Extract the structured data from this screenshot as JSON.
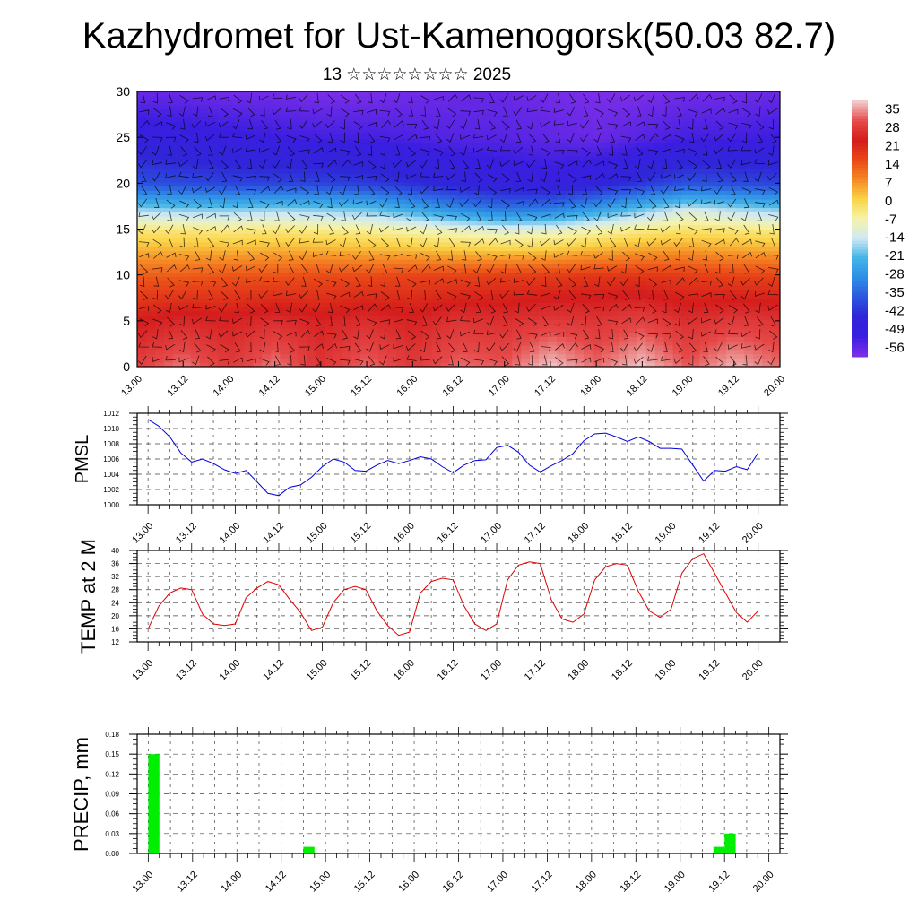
{
  "header": {
    "title": "Kazhydromet for Ust-Kamenogorsk(50.03 82.7)",
    "subtitle": "13 ☆☆☆☆☆☆☆☆ 2025"
  },
  "x_tick_labels": [
    "13.00",
    "13.12",
    "14.00",
    "14.12",
    "15.00",
    "15.12",
    "16.00",
    "16.12",
    "17.00",
    "17.12",
    "18.00",
    "18.12",
    "19.00",
    "19.12",
    "20.00"
  ],
  "colorbar": {
    "labels": [
      "35",
      "28",
      "21",
      "14",
      "7",
      "0",
      "-7",
      "-14",
      "-21",
      "-28",
      "-35",
      "-42",
      "-49",
      "-56"
    ],
    "colors": [
      "#f2c8c8",
      "#e54848",
      "#d41c1c",
      "#ea4a18",
      "#f58a24",
      "#fbd448",
      "#f5f3a8",
      "#cfe9f3",
      "#45b4e8",
      "#2f8ee6",
      "#2c58df",
      "#2f26d8",
      "#3a1ee0",
      "#7b2ee8"
    ]
  },
  "chart_data": [
    {
      "type": "heatmap",
      "title": "",
      "ylabel": "",
      "ylim": [
        0,
        30
      ],
      "yticks": [
        0,
        5,
        10,
        15,
        20,
        25,
        30
      ],
      "x_hours": [
        0,
        168
      ],
      "field": "temperature by level with wind barbs overlay",
      "color_scale": [
        -56,
        35
      ],
      "value_rows": [
        {
          "y": 30,
          "values": [
            -54,
            -54,
            -55,
            -55,
            -56,
            -56,
            -55,
            -54,
            -54,
            -55,
            -56,
            -56,
            -55,
            -55,
            -54
          ]
        },
        {
          "y": 25,
          "values": [
            -46,
            -47,
            -48,
            -49,
            -50,
            -50,
            -51,
            -52,
            -52,
            -53,
            -54,
            -52,
            -50,
            -50,
            -49
          ]
        },
        {
          "y": 20,
          "values": [
            -36,
            -37,
            -38,
            -38,
            -38,
            -39,
            -41,
            -44,
            -46,
            -47,
            -44,
            -40,
            -36,
            -37,
            -38
          ]
        },
        {
          "y": 17,
          "values": [
            -16,
            -17,
            -17,
            -16,
            -17,
            -18,
            -22,
            -27,
            -30,
            -29,
            -24,
            -18,
            -12,
            -15,
            -17
          ]
        },
        {
          "y": 15,
          "values": [
            -4,
            -4,
            -5,
            -4,
            -5,
            -6,
            -8,
            -10,
            -12,
            -11,
            -8,
            -5,
            -3,
            -4,
            -5
          ]
        },
        {
          "y": 10,
          "values": [
            12,
            12,
            13,
            13,
            14,
            14,
            15,
            15,
            16,
            16,
            17,
            17,
            16,
            15,
            15
          ]
        },
        {
          "y": 5,
          "values": [
            21,
            23,
            22,
            24,
            22,
            24,
            22,
            25,
            24,
            26,
            25,
            27,
            24,
            26,
            25
          ]
        },
        {
          "y": 0,
          "values": [
            27,
            31,
            26,
            31,
            25,
            30,
            26,
            30,
            29,
            35,
            30,
            35,
            29,
            34,
            30
          ]
        }
      ]
    },
    {
      "type": "line",
      "ylabel": "PMSL",
      "ylim": [
        1000,
        1012
      ],
      "yticks": [
        1000,
        1002,
        1004,
        1006,
        1008,
        1010,
        1012
      ],
      "x_start_hour": 0,
      "x_step_hours": 3,
      "series": [
        {
          "color": "#0000dd",
          "values": [
            1011.2,
            1010.3,
            1008.9,
            1006.8,
            1005.6,
            1006.0,
            1005.4,
            1004.6,
            1004.1,
            1004.5,
            1003.0,
            1001.5,
            1001.2,
            1002.3,
            1002.6,
            1003.6,
            1005.0,
            1006.0,
            1005.6,
            1004.5,
            1004.4,
            1005.2,
            1005.8,
            1005.4,
            1005.8,
            1006.3,
            1006.0,
            1005.0,
            1004.2,
            1005.2,
            1005.8,
            1005.9,
            1007.5,
            1007.8,
            1006.9,
            1005.2,
            1004.3,
            1005.1,
            1005.8,
            1006.7,
            1008.4,
            1009.3,
            1009.4,
            1008.9,
            1008.3,
            1008.9,
            1008.3,
            1007.4,
            1007.4,
            1007.3,
            1005.2,
            1003.1,
            1004.5,
            1004.4,
            1005.0,
            1004.6,
            1006.8
          ]
        }
      ]
    },
    {
      "type": "line",
      "ylabel": "TEMP at 2 M",
      "ylim": [
        12,
        40
      ],
      "yticks": [
        12,
        16,
        20,
        24,
        28,
        32,
        36,
        40
      ],
      "x_start_hour": 0,
      "x_step_hours": 3,
      "series": [
        {
          "color": "#dd0000",
          "values": [
            16,
            23,
            27,
            28.5,
            28,
            20.5,
            17.5,
            17,
            17.5,
            25.5,
            28.5,
            30.5,
            29.5,
            25,
            21,
            15.5,
            16.5,
            24,
            28,
            29,
            28,
            21.5,
            17,
            14,
            15,
            27,
            30.5,
            31.5,
            31,
            23,
            17.5,
            15.5,
            17.5,
            31,
            35.5,
            36.5,
            36,
            25,
            19,
            18,
            20.5,
            31,
            35,
            36,
            35.5,
            27.5,
            21.5,
            19.5,
            22,
            33,
            37.5,
            39,
            33,
            27,
            21,
            18,
            21.5
          ]
        }
      ]
    },
    {
      "type": "bar",
      "ylabel": "PRECIP, mm",
      "ylim": [
        0,
        0.18
      ],
      "yticks": [
        0.0,
        0.03,
        0.06,
        0.09,
        0.12,
        0.15,
        0.18
      ],
      "bars": [
        {
          "hour": 1.5,
          "value": 0.15
        },
        {
          "hour": 43.5,
          "value": 0.01
        },
        {
          "hour": 154.5,
          "value": 0.01
        },
        {
          "hour": 157.5,
          "value": 0.03
        }
      ],
      "bar_color": "#00ee00"
    }
  ]
}
